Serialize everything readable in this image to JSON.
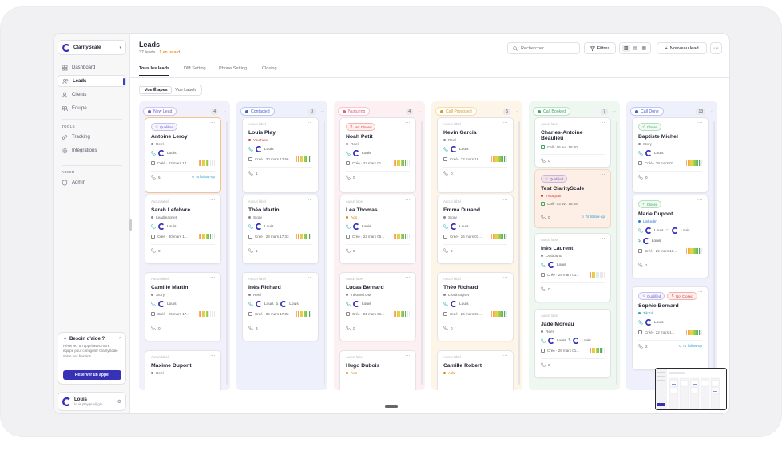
{
  "workspace": {
    "name": "ClarityScale"
  },
  "sidebar": {
    "nav": [
      {
        "label": "Dashboard",
        "icon": "grid-icon"
      },
      {
        "label": "Leads",
        "icon": "users-icon",
        "active": true
      },
      {
        "label": "Clients",
        "icon": "user-icon"
      },
      {
        "label": "Equipe",
        "icon": "team-icon"
      }
    ],
    "tools_title": "TOOLS",
    "tools": [
      {
        "label": "Tracking",
        "icon": "link-icon"
      },
      {
        "label": "Intégrations",
        "icon": "gear-icon"
      }
    ],
    "admin_title": "ADMIN",
    "admin": [
      {
        "label": "Admin",
        "icon": "shield-icon"
      }
    ],
    "help": {
      "title": "Besoin d'aide ?",
      "text": "Réservez un appel avec notre équipe pour configurer ClarityScale selon vos besoins.",
      "button": "Réserver un appel"
    },
    "user": {
      "name": "Louis",
      "email": "louis.play.pro@gm..."
    }
  },
  "header": {
    "title": "Leads",
    "count": "37 leads",
    "late": "1 en retard",
    "search_placeholder": "Rechercher...",
    "filters": "Filtres",
    "new_lead": "Nouveau lead"
  },
  "tabs": [
    "Tous les leads",
    "DM Setting",
    "Phone Setting",
    "Closing"
  ],
  "views": [
    "Vue Étapes",
    "Vue Labels"
  ],
  "colors": {
    "accent": "#3731b8",
    "late": "#e07b00"
  },
  "columns": [
    {
      "title": "New Lead",
      "count": "4",
      "color": "#6d5bd0",
      "bg": "#f2f0fb",
      "cards": [
        {
          "label": "",
          "tags": [
            {
              "t": "Qualified",
              "c": "#6d5bd0",
              "icon": "star-icon"
            }
          ],
          "name": "Antoine Leroy",
          "source": "Reel",
          "src_color": "#888",
          "assignees": [
            "Louis"
          ],
          "created": "Créé · 22 mars 17...",
          "heat": 7,
          "calls": "5",
          "followup": "To follow-up",
          "highlight": "orange"
        },
        {
          "label": "Aucun label",
          "tags": [],
          "name": "Sarah Lefebvre",
          "source": "Leadmagnet",
          "src_color": "#888",
          "assignees": [
            "Louis"
          ],
          "created": "Créé · 30 mars 1...",
          "heat": 10,
          "calls": "0"
        },
        {
          "label": "Aucun label",
          "tags": [],
          "name": "Camille Martin",
          "source": "Story",
          "src_color": "#888",
          "assignees": [
            "Louis"
          ],
          "created": "Créé · 26 mars 17...",
          "heat": 7,
          "calls": "0"
        },
        {
          "label": "Aucun label",
          "tags": [],
          "name": "Maxime Dupont",
          "source": "Reel",
          "src_color": "#888",
          "assignees": [],
          "created": "",
          "heat": 0,
          "calls": ""
        }
      ]
    },
    {
      "title": "Contacted",
      "count": "3",
      "color": "#3f5bd8",
      "bg": "#eef1fc",
      "cards": [
        {
          "label": "Aucun label",
          "tags": [],
          "name": "Louis Play",
          "source": "YouTube",
          "src_color": "#e0352b",
          "assignees": [
            "Louis"
          ],
          "created": "Créé · 30 mars 12:56",
          "heat": 10,
          "calls": "1"
        },
        {
          "label": "Aucun label",
          "tags": [],
          "name": "Théo Martin",
          "source": "Story",
          "src_color": "#888",
          "assignees": [
            "Louis"
          ],
          "created": "Créé · 28 mars 17:33",
          "heat": 10,
          "calls": "1"
        },
        {
          "label": "Aucun label",
          "tags": [],
          "name": "Inès Richard",
          "source": "Reel",
          "src_color": "#888",
          "assignees": [
            "Louis",
            "Louis"
          ],
          "dollar": true,
          "created": "Créé · 06 mars 17:33",
          "heat": 10,
          "calls": "3"
        }
      ]
    },
    {
      "title": "Nurturing",
      "count": "4",
      "color": "#e05a7a",
      "bg": "#fdf0f3",
      "cards": [
        {
          "label": "",
          "tags": [
            {
              "t": "Not Closed",
              "c": "#e0352b",
              "icon": "x-icon"
            }
          ],
          "name": "Noah Petit",
          "source": "Reel",
          "src_color": "#888",
          "assignees": [
            "Louis"
          ],
          "created": "Créé · 22 mars 01...",
          "heat": 10,
          "calls": "0"
        },
        {
          "label": "Aucun label",
          "tags": [],
          "name": "Léa Thomas",
          "source": "Ads",
          "src_color": "#e07b00",
          "assignees": [
            "Louis"
          ],
          "created": "Créé · 22 mars 05...",
          "heat": 10,
          "calls": "0"
        },
        {
          "label": "Aucun label",
          "tags": [],
          "name": "Lucas Bernard",
          "source": "Inbound DM",
          "src_color": "#888",
          "assignees": [
            "Louis"
          ],
          "created": "Créé · 21 mars 01...",
          "heat": 10,
          "calls": "0"
        },
        {
          "label": "Aucun label",
          "tags": [],
          "name": "Hugo Dubois",
          "source": "Ads",
          "src_color": "#e07b00",
          "assignees": [],
          "created": "",
          "heat": 0,
          "calls": ""
        }
      ]
    },
    {
      "title": "Call Proposed",
      "count": "6",
      "color": "#d99a1e",
      "bg": "#fdf6e8",
      "cards": [
        {
          "label": "Aucun label",
          "tags": [],
          "name": "Kevin Garcia",
          "source": "Reel",
          "src_color": "#888",
          "assignees": [
            "Louis"
          ],
          "created": "Créé · 22 mars 18...",
          "heat": 10,
          "calls": "0"
        },
        {
          "label": "Aucun label",
          "tags": [],
          "name": "Emma Durand",
          "source": "Story",
          "src_color": "#888",
          "assignees": [
            "Louis"
          ],
          "created": "Créé · 26 mars 01...",
          "heat": 10,
          "calls": "0"
        },
        {
          "label": "Aucun label",
          "tags": [],
          "name": "Théo Richard",
          "source": "Leadmagnet",
          "src_color": "#888",
          "assignees": [
            "Louis"
          ],
          "created": "Créé · 25 mars 01...",
          "heat": 10,
          "calls": "0"
        },
        {
          "label": "Aucun label",
          "tags": [],
          "name": "Camille Robert",
          "source": "Ads",
          "src_color": "#e07b00",
          "assignees": [],
          "created": "",
          "heat": 0,
          "calls": ""
        }
      ]
    },
    {
      "title": "Call Booked",
      "count": "7",
      "color": "#3aa75a",
      "bg": "#eef8f1",
      "cards": [
        {
          "label": "Aucun label",
          "tags": [],
          "name": "Charles-Antoine Beaulieu",
          "source": "",
          "src_color": "#888",
          "assignees": [],
          "call": "Call · 06 avr. 16:00",
          "created": "",
          "heat": 0,
          "calls": "0"
        },
        {
          "label": "",
          "tags": [
            {
              "t": "Qualified",
              "c": "#6d5bd0",
              "icon": "star-icon"
            }
          ],
          "name": "Test ClarityScale",
          "source": "Instagram",
          "src_color": "#e0352b",
          "assignees": [],
          "call": "Call · 03 avr. 18:28",
          "created": "",
          "heat": 0,
          "calls": "0",
          "followup": "To follow-up",
          "highlight": "peach"
        },
        {
          "label": "Aucun label",
          "tags": [],
          "name": "Inès Laurent",
          "source": "Outbound",
          "src_color": "#888",
          "assignees": [
            "Louis"
          ],
          "created": "Créé · 29 mars 01...",
          "heat": 5,
          "calls": "0"
        },
        {
          "label": "Aucun label",
          "tags": [],
          "name": "Jade Moreau",
          "source": "Reel",
          "src_color": "#888",
          "assignees": [
            "Louis",
            "Louis"
          ],
          "dollar": true,
          "created": "Créé · 26 mars 01...",
          "heat": 10,
          "calls": "0"
        }
      ]
    },
    {
      "title": "Call Done",
      "count": "13",
      "color": "#3f5bd8",
      "bg": "#eef1fc",
      "cards": [
        {
          "label": "",
          "tags": [
            {
              "t": "Closed",
              "c": "#3aa75a",
              "icon": "check-icon"
            }
          ],
          "name": "Baptiste Michel",
          "source": "Story",
          "src_color": "#888",
          "assignees": [
            "Louis"
          ],
          "created": "Créé · 29 mars 01...",
          "heat": 10,
          "calls": "0"
        },
        {
          "label": "",
          "tags": [
            {
              "t": "Closed",
              "c": "#3aa75a",
              "icon": "check-icon"
            }
          ],
          "name": "Marie Dupont",
          "source": "LinkedIn",
          "src_color": "#2a7bd6",
          "assignees": [
            "Louis",
            "Louis"
          ],
          "chat": true,
          "dollar2": "Louis",
          "created": "Créé · 29 mars 18...",
          "heat": 10,
          "calls": "1"
        },
        {
          "label": "",
          "tags": [
            {
              "t": "Qualified",
              "c": "#6d5bd0",
              "icon": "star-icon"
            },
            {
              "t": "Not Closed",
              "c": "#e0352b",
              "icon": "x-icon"
            }
          ],
          "name": "Sophie Bernard",
          "source": "TikTok",
          "src_color": "#27a3b5",
          "assignees": [
            "Louis"
          ],
          "created": "Créé · 22 mars 1...",
          "heat": 10,
          "calls": "2",
          "followup": "To follow-up"
        }
      ]
    }
  ]
}
